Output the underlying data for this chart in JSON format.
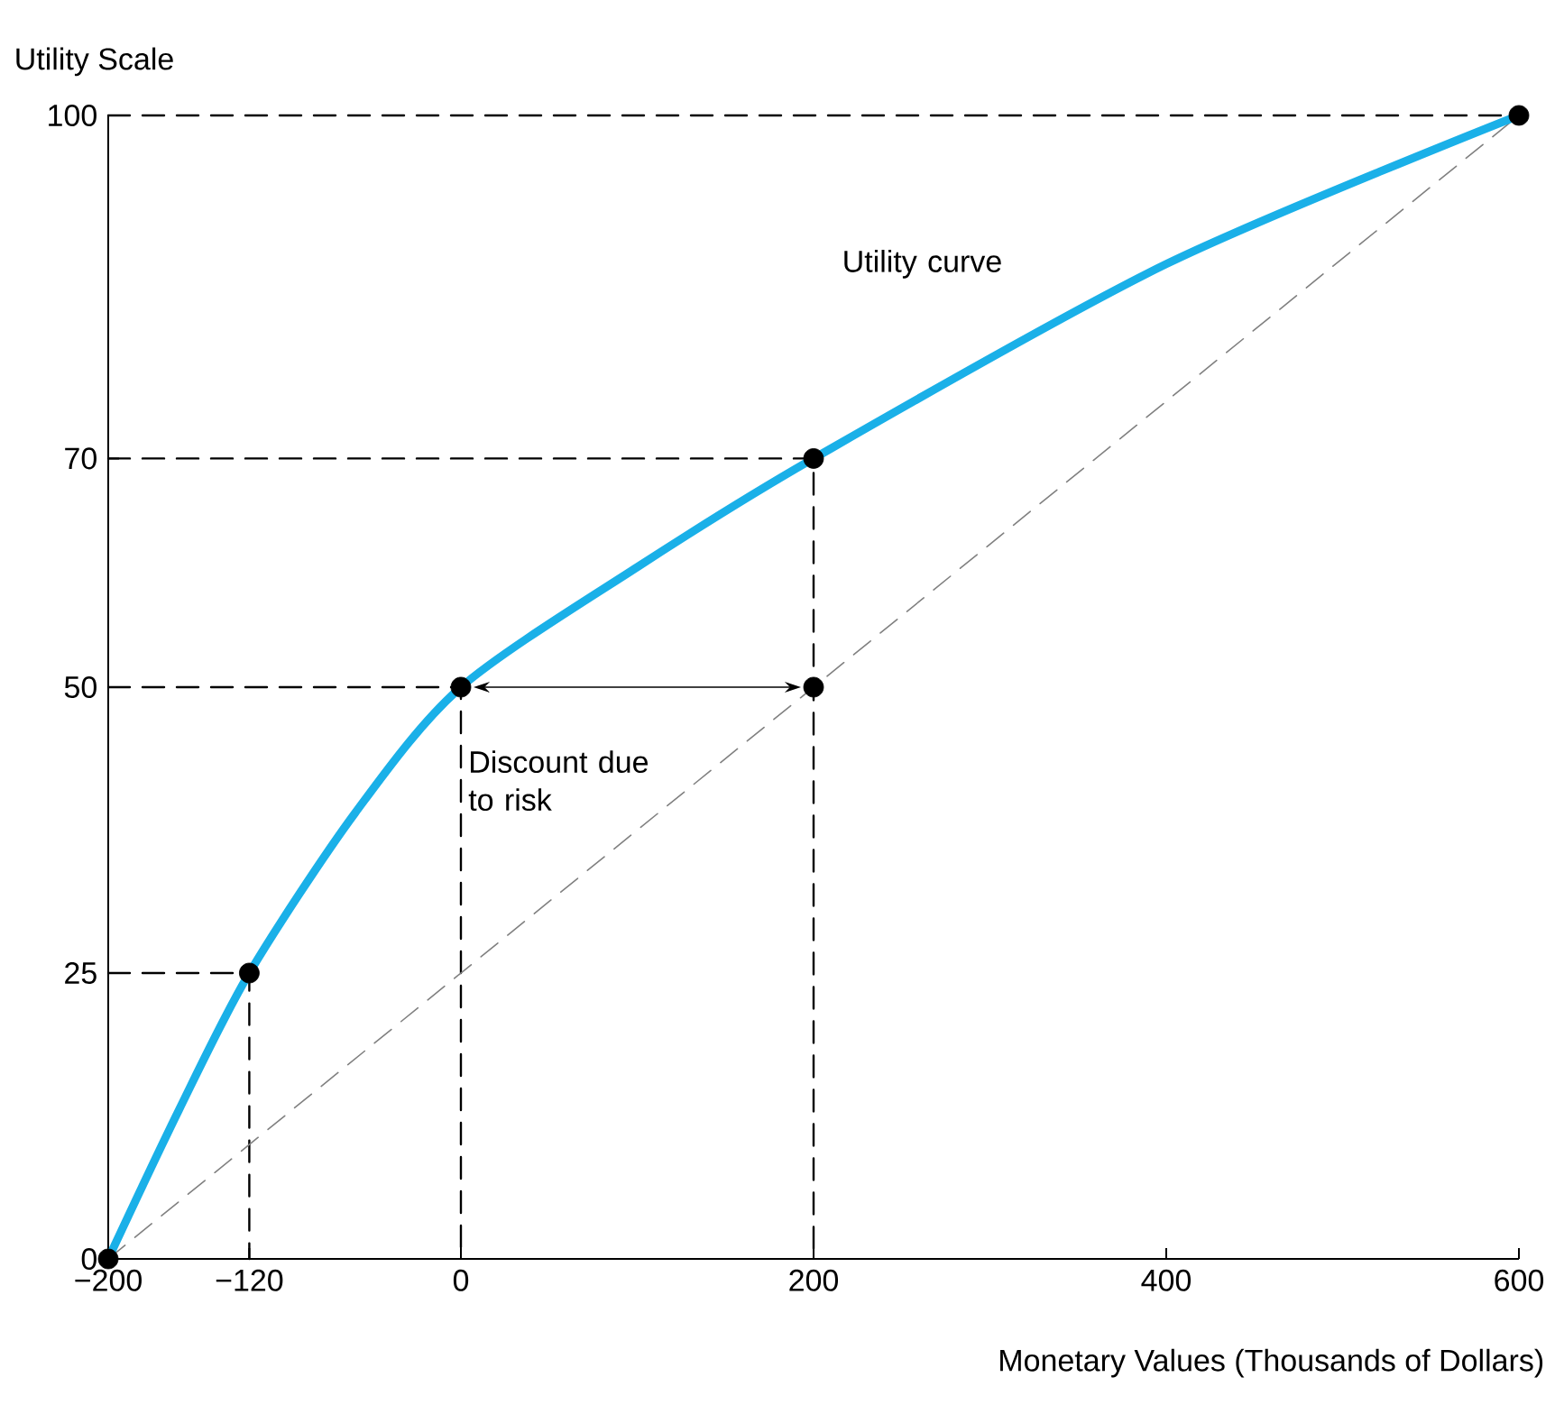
{
  "chart_data": {
    "type": "line",
    "xlabel": "Monetary Values (Thousands of Dollars)",
    "ylabel": "Utility Scale",
    "xlim": [
      -200,
      600
    ],
    "ylim": [
      0,
      100
    ],
    "xticks": [
      {
        "value": -200,
        "label": "−200"
      },
      {
        "value": -120,
        "label": "−120"
      },
      0,
      200,
      400,
      600
    ],
    "yticks": [
      0,
      25,
      50,
      70,
      100
    ],
    "grid": false,
    "series": [
      {
        "type": "line",
        "color": "#000000",
        "line_style": "dashed",
        "marker": "none",
        "x": [
          -200,
          600
        ],
        "values": [
          100,
          100
        ]
      },
      {
        "type": "line",
        "color": "#000000",
        "line_style": "dashed",
        "marker": "none",
        "x": [
          -200,
          200,
          200
        ],
        "values": [
          70,
          70,
          0
        ]
      },
      {
        "type": "line",
        "color": "#000000",
        "line_style": "dashed",
        "marker": "none",
        "x": [
          -200,
          0,
          0
        ],
        "values": [
          50,
          50,
          0
        ]
      },
      {
        "type": "line",
        "color": "#000000",
        "line_style": "dashed",
        "marker": "none",
        "x": [
          -200,
          -120,
          -120
        ],
        "values": [
          25,
          25,
          0
        ]
      },
      {
        "type": "line",
        "color": "#808080",
        "line_style": "dashed",
        "marker": "none",
        "x": [
          -200,
          600
        ],
        "values": [
          0,
          100
        ]
      },
      {
        "type": "line",
        "color": "#1ab0e8",
        "line_style": "solid",
        "marker": "none",
        "x": [
          -200,
          -160,
          -120,
          -60,
          0,
          100,
          200,
          400,
          600
        ],
        "values": [
          0,
          13,
          25,
          39,
          50,
          60.5,
          70,
          87,
          100
        ]
      },
      {
        "type": "scatter",
        "color": "#000000",
        "marker": "circle",
        "x": [
          -200,
          -120,
          0,
          200,
          200,
          600
        ],
        "values": [
          0,
          25,
          50,
          70,
          50,
          100
        ]
      }
    ],
    "annotations": [
      "Utility curve",
      "Discount due to risk"
    ]
  }
}
